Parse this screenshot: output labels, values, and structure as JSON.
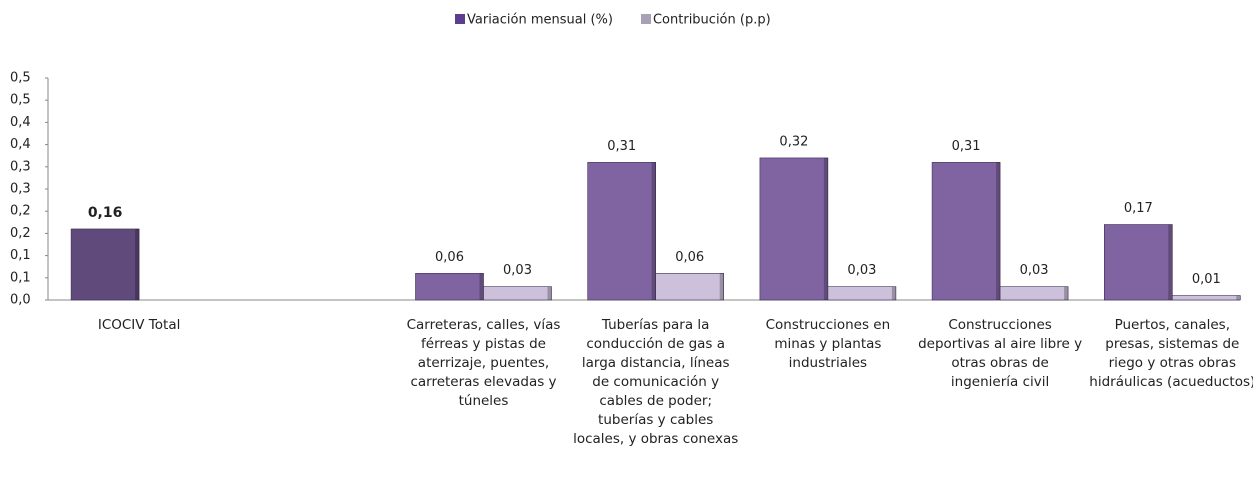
{
  "chart_data": {
    "type": "bar",
    "categories": [
      "ICOCIV Total",
      null,
      "Carreteras, calles, vías férreas y pistas de aterrizaje, puentes, carreteras elevadas y túneles",
      "Tuberías para la conducción de gas a larga distancia, líneas de comunicación y cables de poder; tuberías y cables locales, y obras conexas",
      "Construcciones  en minas y plantas industriales",
      "Construcciones deportivas al aire libre y otras obras de ingeniería civil",
      "Puertos, canales, presas, sistemas de riego y otras obras hidráulicas (acueductos)"
    ],
    "series": [
      {
        "name": "Variación mensual (%)",
        "color": "#5c3d8f",
        "colors": [
          "#604a7b",
          null,
          "#8064a2",
          "#8064a2",
          "#8064a2",
          "#8064a2",
          "#8064a2"
        ],
        "values": [
          0.16,
          null,
          0.06,
          0.31,
          0.32,
          0.31,
          0.17
        ],
        "value_labels": [
          "0,16",
          null,
          "0,06",
          "0,31",
          "0,32",
          "0,31",
          "0,17"
        ]
      },
      {
        "name": "Contribución (p.p)",
        "color": "#a9a0b8",
        "colors": [
          null,
          null,
          "#ccc0da",
          "#ccc0da",
          "#ccc0da",
          "#ccc0da",
          "#ccc0da"
        ],
        "values": [
          null,
          null,
          0.03,
          0.06,
          0.03,
          0.03,
          0.01
        ],
        "value_labels": [
          null,
          null,
          "0,03",
          "0,06",
          "0,03",
          "0,03",
          "0,01"
        ]
      }
    ],
    "ylim": [
      0,
      0.5
    ],
    "yticks": [
      {
        "value": 0,
        "label": "0,0"
      },
      {
        "value": 0.05,
        "label": "0,1"
      },
      {
        "value": 0.1,
        "label": "0,1"
      },
      {
        "value": 0.15,
        "label": "0,2"
      },
      {
        "value": 0.2,
        "label": "0,2"
      },
      {
        "value": 0.25,
        "label": "0,3"
      },
      {
        "value": 0.3,
        "label": "0,3"
      },
      {
        "value": 0.35,
        "label": "0,4"
      },
      {
        "value": 0.4,
        "label": "0,4"
      },
      {
        "value": 0.45,
        "label": "0,5"
      },
      {
        "value": 0.5,
        "label": "0,5"
      }
    ],
    "grid": false,
    "legend": "top"
  }
}
